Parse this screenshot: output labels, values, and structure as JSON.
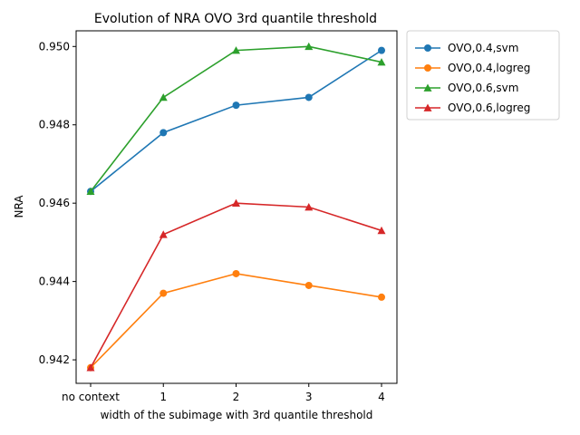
{
  "chart_data": {
    "type": "line",
    "title": "Evolution of NRA OVO 3rd quantile threshold",
    "xlabel": "width of the subimage with 3rd quantile threshold",
    "ylabel": "NRA",
    "categories": [
      "no context",
      "1",
      "2",
      "3",
      "4"
    ],
    "y_ticks": [
      "0.942",
      "0.944",
      "0.946",
      "0.948",
      "0.950"
    ],
    "y_tick_values": [
      0.942,
      0.944,
      0.946,
      0.948,
      0.95
    ],
    "ylim": [
      0.9414,
      0.9504
    ],
    "grid": false,
    "legend_position": "outside upper right",
    "series": [
      {
        "name": "OVO,0.4,svm",
        "color": "#1f77b4",
        "marker": "circle",
        "values": [
          0.9463,
          0.9478,
          0.9485,
          0.9487,
          0.9499
        ]
      },
      {
        "name": "OVO,0.4,logreg",
        "color": "#ff7f0e",
        "marker": "circle",
        "values": [
          0.9418,
          0.9437,
          0.9442,
          0.9439,
          0.9436
        ]
      },
      {
        "name": "OVO,0.6,svm",
        "color": "#2ca02c",
        "marker": "triangle",
        "values": [
          0.9463,
          0.9487,
          0.9499,
          0.95,
          0.9496
        ]
      },
      {
        "name": "OVO,0.6,logreg",
        "color": "#d62728",
        "marker": "triangle",
        "values": [
          0.9418,
          0.9452,
          0.946,
          0.9459,
          0.9453
        ]
      }
    ]
  }
}
